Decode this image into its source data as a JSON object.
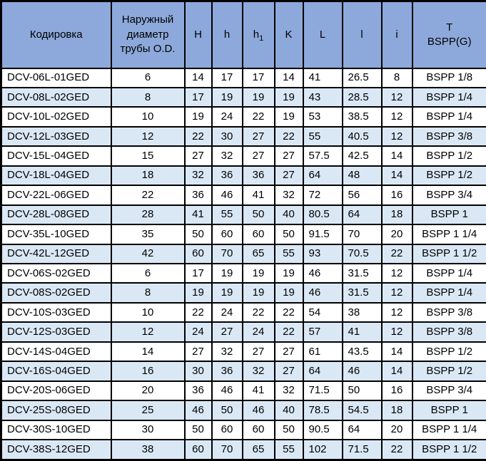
{
  "table": {
    "headers": [
      {
        "label": "Кодировка"
      },
      {
        "label": "Наружный диаметр трубы O.D."
      },
      {
        "label": "H"
      },
      {
        "label": "h"
      },
      {
        "label": "h",
        "sub": "1"
      },
      {
        "label": "K"
      },
      {
        "label": "L"
      },
      {
        "label": "l"
      },
      {
        "label": "i"
      },
      {
        "label": "T",
        "line2": "BSPP(G)"
      }
    ],
    "rows": [
      [
        "DCV-06L-01GED",
        "6",
        "14",
        "17",
        "17",
        "14",
        "41",
        "26.5",
        "8",
        "BSPP 1/8"
      ],
      [
        "DCV-08L-02GED",
        "8",
        "17",
        "19",
        "19",
        "19",
        "43",
        "28.5",
        "12",
        "BSPP 1/4"
      ],
      [
        "DCV-10L-02GED",
        "10",
        "19",
        "24",
        "22",
        "19",
        "53",
        "38.5",
        "12",
        "BSPP 1/4"
      ],
      [
        "DCV-12L-03GED",
        "12",
        "22",
        "30",
        "27",
        "22",
        "55",
        "40.5",
        "12",
        "BSPP 3/8"
      ],
      [
        "DCV-15L-04GED",
        "15",
        "27",
        "32",
        "27",
        "27",
        "57.5",
        "42.5",
        "14",
        "BSPP 1/2"
      ],
      [
        "DCV-18L-04GED",
        "18",
        "32",
        "36",
        "36",
        "27",
        "64",
        "48",
        "14",
        "BSPP 1/2"
      ],
      [
        "DCV-22L-06GED",
        "22",
        "36",
        "46",
        "41",
        "32",
        "72",
        "56",
        "16",
        "BSPP 3/4"
      ],
      [
        "DCV-28L-08GED",
        "28",
        "41",
        "55",
        "50",
        "40",
        "80.5",
        "64",
        "18",
        "BSPP 1"
      ],
      [
        "DCV-35L-10GED",
        "35",
        "50",
        "60",
        "60",
        "50",
        "91.5",
        "70",
        "20",
        "BSPP 1 1/4"
      ],
      [
        "DCV-42L-12GED",
        "42",
        "60",
        "70",
        "65",
        "55",
        "93",
        "70.5",
        "22",
        "BSPP 1 1/2"
      ],
      [
        "DCV-06S-02GED",
        "6",
        "17",
        "19",
        "19",
        "19",
        "46",
        "31.5",
        "12",
        "BSPP 1/4"
      ],
      [
        "DCV-08S-02GED",
        "8",
        "19",
        "19",
        "19",
        "19",
        "46",
        "31.5",
        "12",
        "BSPP 1/4"
      ],
      [
        "DCV-10S-03GED",
        "10",
        "22",
        "24",
        "22",
        "22",
        "54",
        "38",
        "12",
        "BSPP 3/8"
      ],
      [
        "DCV-12S-03GED",
        "12",
        "24",
        "27",
        "24",
        "22",
        "57",
        "41",
        "12",
        "BSPP 3/8"
      ],
      [
        "DCV-14S-04GED",
        "14",
        "27",
        "32",
        "27",
        "27",
        "61",
        "43.5",
        "14",
        "BSPP 1/2"
      ],
      [
        "DCV-16S-04GED",
        "16",
        "30",
        "36",
        "32",
        "27",
        "64",
        "46",
        "14",
        "BSPP 1/2"
      ],
      [
        "DCV-20S-06GED",
        "20",
        "36",
        "46",
        "41",
        "32",
        "71.5",
        "50",
        "16",
        "BSPP 3/4"
      ],
      [
        "DCV-25S-08GED",
        "25",
        "46",
        "50",
        "46",
        "40",
        "78.5",
        "54.5",
        "18",
        "BSPP 1"
      ],
      [
        "DCV-30S-10GED",
        "30",
        "50",
        "60",
        "60",
        "50",
        "90.5",
        "64",
        "20",
        "BSPP 1 1/4"
      ],
      [
        "DCV-38S-12GED",
        "38",
        "60",
        "70",
        "65",
        "55",
        "102",
        "71.5",
        "22",
        "BSPP 1 1/2"
      ]
    ]
  },
  "colors": {
    "header_bg": "#8DA9DB",
    "stripe_bg": "#DAE8F6",
    "row_bg": "#FFFFFF",
    "border": "#000000",
    "text": "#000000"
  }
}
